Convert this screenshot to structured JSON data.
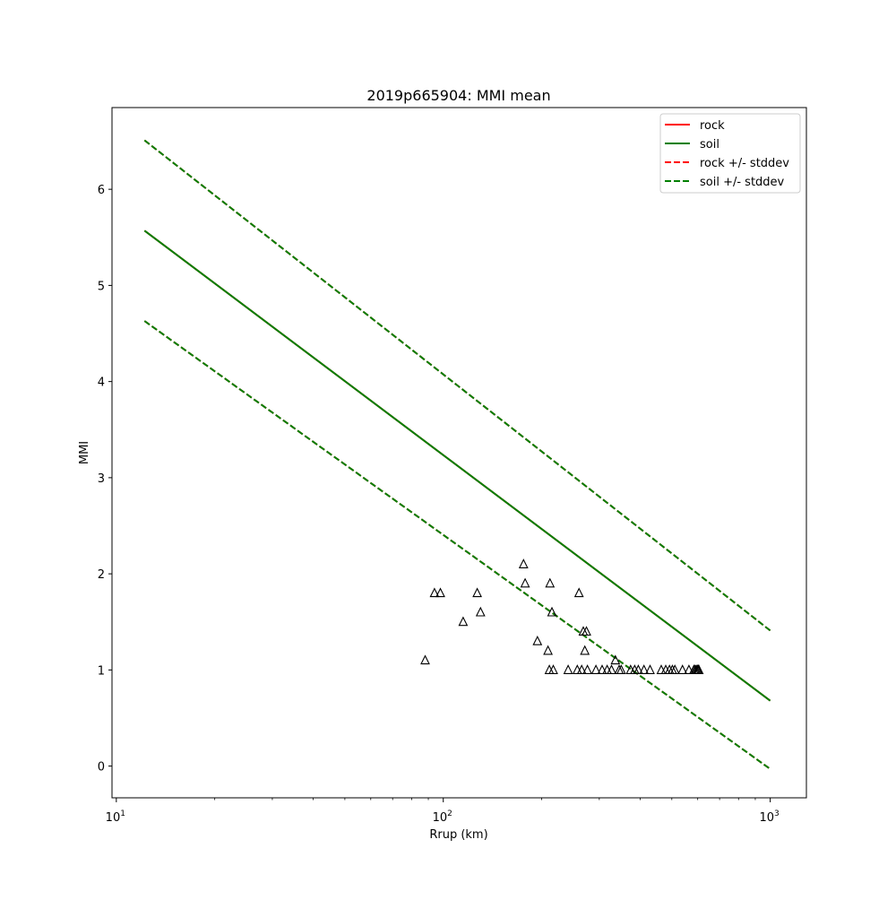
{
  "chart_data": {
    "type": "line",
    "title": "2019p665904: MMI mean",
    "xlabel": "Rrup (km)",
    "ylabel": "MMI",
    "xscale": "log",
    "xlim": [
      9.7,
      1290
    ],
    "ylim": [
      -0.33,
      6.85
    ],
    "x_ticks": [
      {
        "value": 10,
        "base": "10",
        "exp": "1"
      },
      {
        "value": 100,
        "base": "10",
        "exp": "2"
      },
      {
        "value": 1000,
        "base": "10",
        "exp": "3"
      }
    ],
    "y_ticks": [
      0,
      1,
      2,
      3,
      4,
      5,
      6
    ],
    "grid": false,
    "legend_position": "top-right",
    "series": [
      {
        "name": "rock",
        "style": "solid",
        "color": "#ff0000",
        "x": [
          12.2,
          1000
        ],
        "y": [
          5.57,
          0.68
        ]
      },
      {
        "name": "soil",
        "style": "solid",
        "color": "#008000",
        "x": [
          12.2,
          1000
        ],
        "y": [
          5.57,
          0.68
        ]
      },
      {
        "name": "rock +/- stddev",
        "style": "dashed",
        "color": "#ff0000",
        "x": [
          12.2,
          1000
        ],
        "y_upper": [
          6.51,
          1.41
        ],
        "y_lower": [
          4.63,
          -0.03
        ]
      },
      {
        "name": "soil +/- stddev",
        "style": "dashed",
        "color": "#008000",
        "x": [
          12.2,
          1000
        ],
        "y_upper": [
          6.51,
          1.41
        ],
        "y_lower": [
          4.63,
          -0.03
        ]
      }
    ],
    "observations": {
      "marker": "triangle",
      "color": "#000000",
      "points": [
        [
          88,
          1.1
        ],
        [
          94,
          1.8
        ],
        [
          98,
          1.8
        ],
        [
          115,
          1.5
        ],
        [
          127,
          1.8
        ],
        [
          130,
          1.6
        ],
        [
          176,
          2.1
        ],
        [
          178,
          1.9
        ],
        [
          194,
          1.3
        ],
        [
          209,
          1.2
        ],
        [
          211,
          1.0
        ],
        [
          212,
          1.9
        ],
        [
          215,
          1.6
        ],
        [
          217,
          1.0
        ],
        [
          241,
          1.0
        ],
        [
          257,
          1.0
        ],
        [
          260,
          1.8
        ],
        [
          265,
          1.0
        ],
        [
          268,
          1.4
        ],
        [
          271,
          1.2
        ],
        [
          274,
          1.4
        ],
        [
          276,
          1.0
        ],
        [
          293,
          1.0
        ],
        [
          306,
          1.0
        ],
        [
          317,
          1.0
        ],
        [
          327,
          1.0
        ],
        [
          336,
          1.1
        ],
        [
          345,
          1.0
        ],
        [
          350,
          1.0
        ],
        [
          374,
          1.0
        ],
        [
          385,
          1.0
        ],
        [
          395,
          1.0
        ],
        [
          411,
          1.0
        ],
        [
          429,
          1.0
        ],
        [
          464,
          1.0
        ],
        [
          479,
          1.0
        ],
        [
          492,
          1.0
        ],
        [
          502,
          1.0
        ],
        [
          511,
          1.0
        ],
        [
          539,
          1.0
        ],
        [
          564,
          1.0
        ],
        [
          584,
          1.0
        ],
        [
          589,
          1.0
        ],
        [
          594,
          1.0
        ],
        [
          599,
          1.0
        ],
        [
          602,
          1.0
        ],
        [
          605,
          1.0
        ]
      ]
    }
  }
}
